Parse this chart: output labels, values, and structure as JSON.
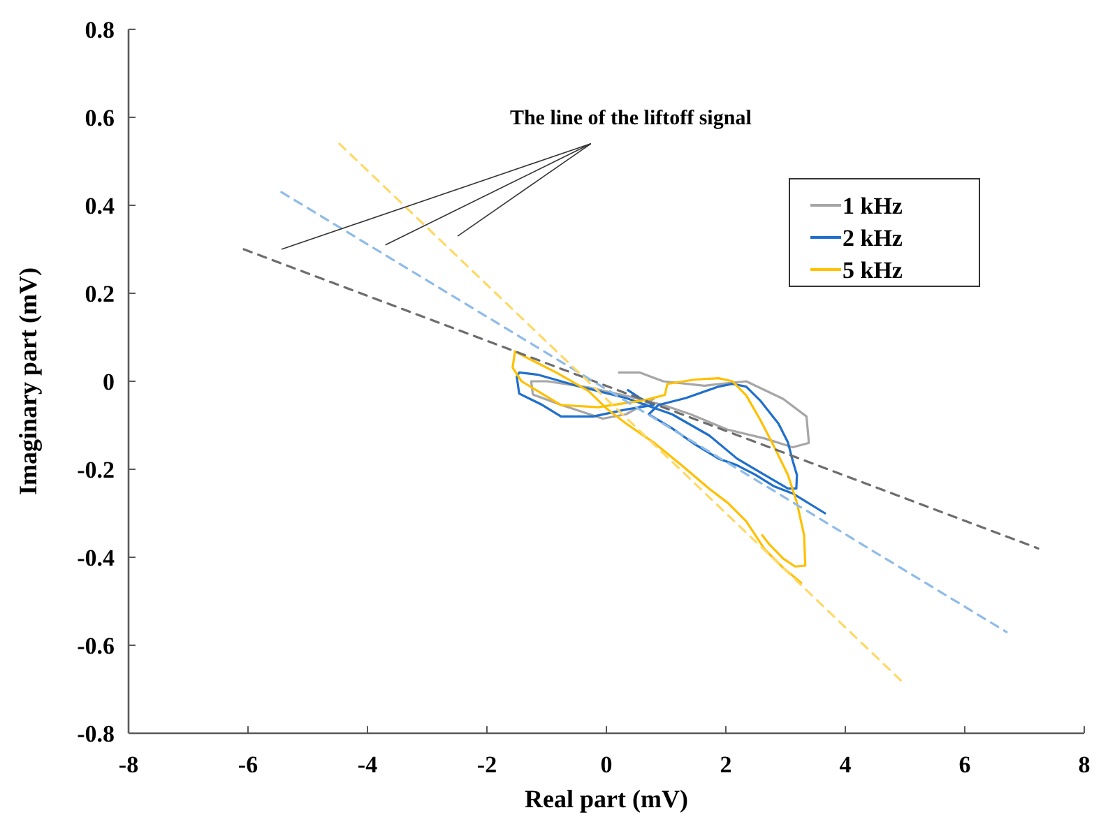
{
  "chart_data": {
    "type": "line",
    "xlabel": "Real part (mV)",
    "ylabel": "Imaginary part (mV)",
    "annotations": [
      "The line of the liftoff signal"
    ],
    "xlim": [
      -8,
      8
    ],
    "xticks": [
      -8,
      -6,
      -4,
      -2,
      0,
      2,
      4,
      6,
      8
    ],
    "ylim": [
      -0.8,
      0.8
    ],
    "yticks": [
      -0.8,
      -0.6,
      -0.4,
      -0.2,
      0,
      0.2,
      0.4,
      0.6,
      0.8
    ],
    "grid": false,
    "legend": "top right",
    "marker": "none",
    "series": [
      {
        "name": "1 kHz",
        "color": "#a6a6a6",
        "line_style": "solid",
        "x": [
          0.21,
          0.56,
          0.95,
          1.64,
          2.34,
          2.96,
          3.35,
          3.39,
          3.12,
          2.65,
          2.03,
          1.41,
          0.95,
          0.33,
          -0.3,
          -0.99,
          -1.26,
          -1.23,
          -0.75,
          -0.06,
          0.33,
          0.79
        ],
        "values": [
          0.02,
          0.02,
          0.0,
          -0.01,
          0.0,
          -0.04,
          -0.08,
          -0.14,
          -0.15,
          -0.13,
          -0.11,
          -0.075,
          -0.054,
          -0.033,
          -0.014,
          0.0,
          0.0,
          -0.03,
          -0.054,
          -0.085,
          -0.075,
          -0.04
        ]
      },
      {
        "name": "2 kHz",
        "color": "#1f6fcc",
        "line_style": "solid",
        "x": [
          0.36,
          0.56,
          0.79,
          0.33,
          -0.22,
          -0.76,
          -1.07,
          -1.46,
          -1.5,
          -1.46,
          -1.15,
          -0.45,
          0.33,
          1.1,
          1.72,
          2.19,
          2.65,
          3.04,
          3.18,
          3.19,
          3.12,
          3.04,
          2.88,
          2.57,
          2.34,
          2.11,
          1.88,
          1.33,
          0.87,
          0.71,
          1.1,
          1.49,
          1.88,
          2.19,
          2.5,
          2.81,
          3.12,
          3.66
        ],
        "values": [
          -0.02,
          -0.038,
          -0.054,
          -0.064,
          -0.08,
          -0.08,
          -0.054,
          -0.028,
          0.01,
          0.02,
          0.015,
          -0.012,
          -0.038,
          -0.075,
          -0.123,
          -0.176,
          -0.213,
          -0.244,
          -0.244,
          -0.213,
          -0.181,
          -0.139,
          -0.096,
          -0.043,
          -0.012,
          -0.006,
          -0.012,
          -0.038,
          -0.054,
          -0.075,
          -0.107,
          -0.144,
          -0.176,
          -0.191,
          -0.213,
          -0.239,
          -0.255,
          -0.3
        ]
      },
      {
        "name": "5 kHz",
        "color": "#ffc000",
        "line_style": "solid",
        "x": [
          3.26,
          2.96,
          2.65,
          2.34,
          2.03,
          1.72,
          1.26,
          0.79,
          0.33,
          0.02,
          -0.3,
          -0.84,
          -1.38,
          -1.53,
          -1.57,
          -1.42,
          -0.76,
          -0.14,
          0.64,
          0.98,
          1.02,
          1.49,
          1.88,
          2.11,
          2.34,
          2.57,
          2.81,
          3.04,
          3.19,
          3.31,
          3.33,
          3.16,
          2.96,
          2.73,
          2.61
        ],
        "values": [
          -0.458,
          -0.424,
          -0.382,
          -0.318,
          -0.276,
          -0.244,
          -0.191,
          -0.139,
          -0.096,
          -0.064,
          -0.022,
          0.02,
          0.057,
          0.068,
          0.031,
          0.0,
          -0.054,
          -0.059,
          -0.043,
          -0.031,
          -0.006,
          0.004,
          0.007,
          0.0,
          -0.032,
          -0.086,
          -0.149,
          -0.213,
          -0.276,
          -0.35,
          -0.419,
          -0.421,
          -0.403,
          -0.371,
          -0.35
        ]
      },
      {
        "color": "#6d6d6d",
        "line_style": "dashed",
        "x": [
          -6.07,
          7.23
        ],
        "values": [
          0.3,
          -0.38
        ]
      },
      {
        "color": "#8fbbe8",
        "line_style": "dashed",
        "x": [
          -5.44,
          6.7
        ],
        "values": [
          0.43,
          -0.57
        ]
      },
      {
        "color": "#ffd966",
        "line_style": "dashed",
        "x": [
          -4.47,
          4.93
        ],
        "values": [
          0.54,
          -0.68
        ]
      }
    ]
  }
}
